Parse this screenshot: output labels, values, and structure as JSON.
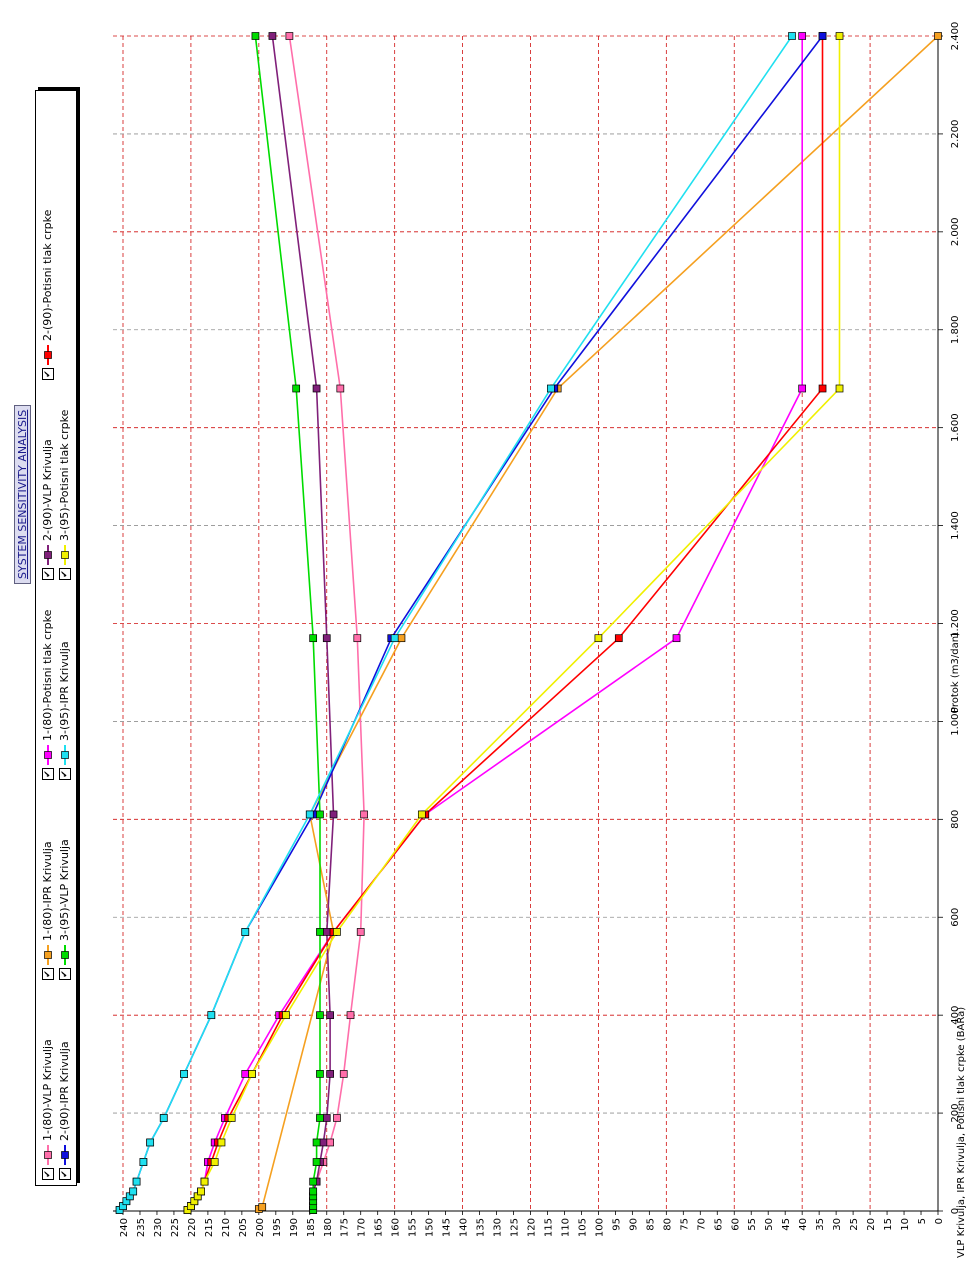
{
  "title": "SYSTEM SENSITIVITY ANALYSIS",
  "chart_data": {
    "type": "line",
    "xlabel": "Protok (m3/dan)",
    "ylabel": "VLP Krivulja, IPR Krivulja, Potisni tlak crpke (BARa)",
    "xlim": [
      0,
      2400
    ],
    "ylim": [
      0,
      240
    ],
    "x_ticks": [
      "0",
      "200",
      "400",
      "600",
      "800",
      "1.000",
      "1.200",
      "1.400",
      "1.600",
      "1.800",
      "2.000",
      "2.200",
      "2.400"
    ],
    "y_ticks": [
      "0",
      "5",
      "10",
      "15",
      "20",
      "25",
      "30",
      "35",
      "40",
      "45",
      "50",
      "55",
      "60",
      "65",
      "70",
      "75",
      "80",
      "85",
      "90",
      "95",
      "100",
      "105",
      "110",
      "115",
      "120",
      "125",
      "130",
      "135",
      "140",
      "145",
      "150",
      "155",
      "160",
      "165",
      "170",
      "175",
      "180",
      "185",
      "190",
      "195",
      "200",
      "205",
      "210",
      "215",
      "220",
      "225",
      "230",
      "235",
      "240"
    ],
    "grid": true,
    "legend_position": "top",
    "series": [
      {
        "name": "1-(80)-VLP Krivulja",
        "color": "#ff6eaa",
        "x": [
          2,
          10,
          20,
          30,
          40,
          60,
          100,
          140,
          190,
          280,
          400,
          570,
          810,
          1170,
          1680,
          2400
        ],
        "y": [
          184,
          184,
          184,
          184,
          184,
          183,
          181,
          179,
          177,
          175,
          173,
          170,
          169,
          171,
          176,
          191
        ]
      },
      {
        "name": "1-(80)-IPR Krivulja",
        "color": "#f5a020",
        "x": [
          4,
          8,
          570,
          810,
          1170,
          1680,
          2400
        ],
        "y": [
          200,
          199,
          178,
          185,
          158,
          112,
          0
        ]
      },
      {
        "name": "1-(80)-Potisni tlak crpke",
        "color": "#ff00ff",
        "x": [
          2,
          10,
          20,
          30,
          40,
          60,
          100,
          140,
          190,
          280,
          400,
          570,
          810,
          1170,
          1680,
          2400
        ],
        "y": [
          221,
          220,
          219,
          218,
          217,
          216,
          215,
          213,
          210,
          204,
          194,
          178,
          151,
          77,
          40,
          40
        ]
      },
      {
        "name": "2-(90)-VLP Krivulja",
        "color": "#80207a",
        "x": [
          2,
          10,
          20,
          30,
          40,
          60,
          100,
          140,
          190,
          280,
          400,
          570,
          810,
          1170,
          1680,
          2400
        ],
        "y": [
          184,
          184,
          184,
          184,
          184,
          183,
          182,
          181,
          180,
          179,
          179,
          180,
          178,
          180,
          183,
          196
        ]
      },
      {
        "name": "2-(90)-Potisni tlak crpke",
        "color": "#ff0000",
        "x": [
          2,
          10,
          20,
          30,
          40,
          60,
          100,
          140,
          190,
          280,
          400,
          570,
          810,
          1170,
          1680,
          2400
        ],
        "y": [
          221,
          220,
          219,
          218,
          217,
          216,
          214,
          212,
          209,
          202,
          193,
          178,
          151,
          94,
          34,
          34
        ]
      },
      {
        "name": "2-(90)-IPR Krivulja",
        "color": "#1010dc",
        "x": [
          2,
          10,
          20,
          30,
          40,
          60,
          100,
          140,
          190,
          280,
          400,
          570,
          810,
          1170,
          1680,
          2400
        ],
        "y": [
          241,
          240,
          239,
          238,
          237,
          236,
          234,
          232,
          228,
          222,
          214,
          204,
          184,
          161,
          113,
          34
        ]
      },
      {
        "name": "3-(95)-VLP Krivulja",
        "color": "#00dc00",
        "x": [
          2,
          10,
          20,
          30,
          40,
          60,
          100,
          140,
          190,
          280,
          400,
          570,
          810,
          1170,
          1680,
          2400
        ],
        "y": [
          184,
          184,
          184,
          184,
          184,
          184,
          183,
          183,
          182,
          182,
          182,
          182,
          182,
          184,
          189,
          201
        ]
      },
      {
        "name": "3-(95)-IPR Krivulja",
        "color": "#20e0f0",
        "x": [
          2,
          10,
          20,
          30,
          40,
          60,
          100,
          140,
          190,
          280,
          400,
          570,
          810,
          1170,
          1680,
          2400
        ],
        "y": [
          241,
          240,
          239,
          238,
          237,
          236,
          234,
          232,
          228,
          222,
          214,
          204,
          185,
          160,
          114,
          43
        ]
      },
      {
        "name": "3-(95)-Potisni tlak crpke",
        "color": "#f0f000",
        "x": [
          2,
          10,
          20,
          30,
          40,
          60,
          100,
          140,
          190,
          280,
          400,
          570,
          810,
          1170,
          1680,
          2400
        ],
        "y": [
          221,
          220,
          219,
          218,
          217,
          216,
          213,
          211,
          208,
          202,
          192,
          177,
          152,
          100,
          29,
          29
        ]
      }
    ]
  },
  "legend_check": "✔"
}
